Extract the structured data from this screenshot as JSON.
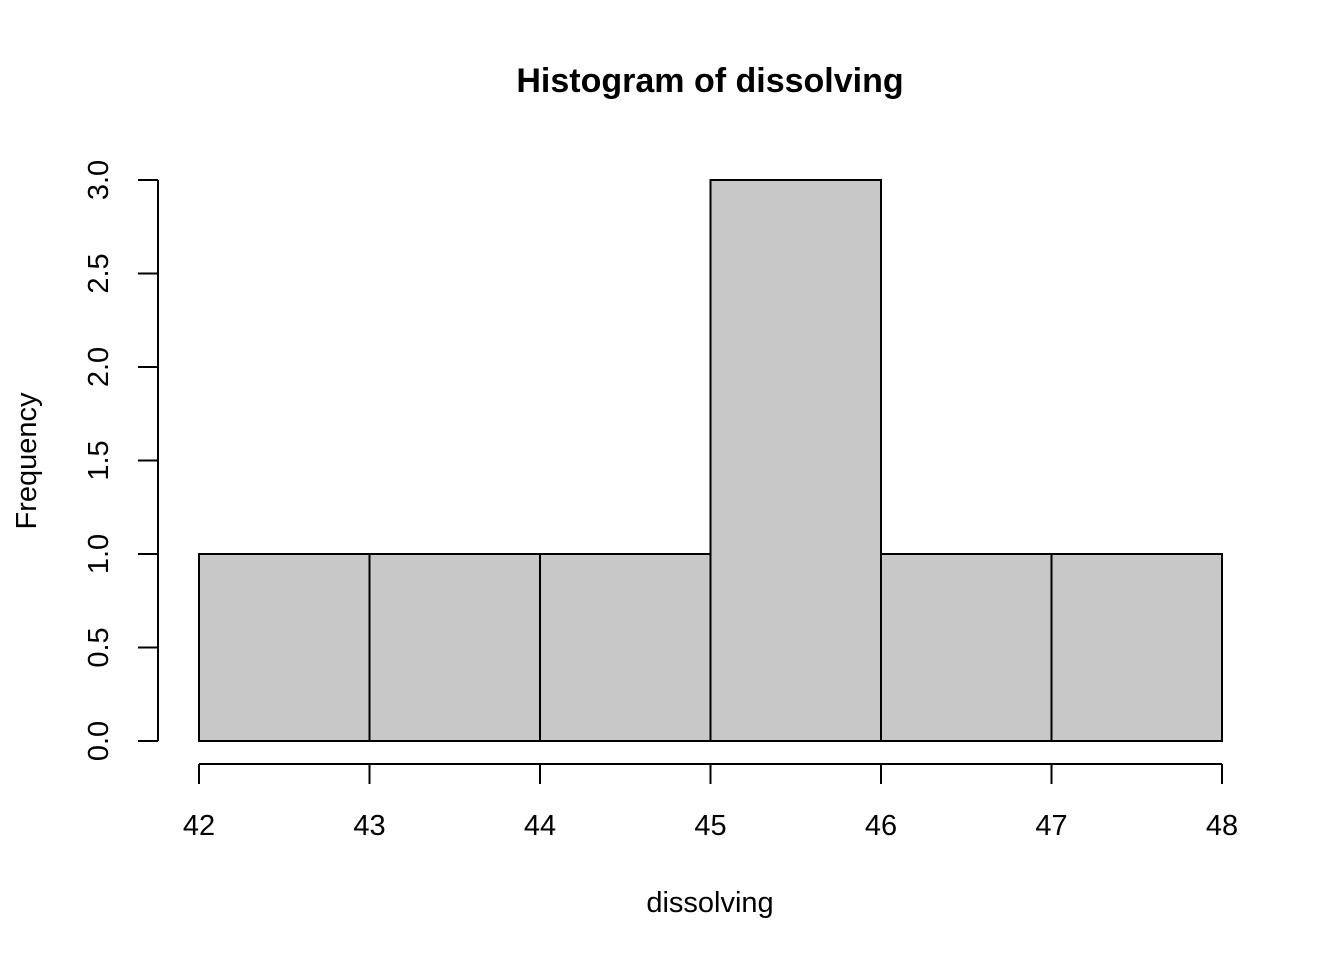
{
  "chart_data": {
    "type": "bar",
    "title": "Histogram of dissolving",
    "xlabel": "dissolving",
    "ylabel": "Frequency",
    "bins": [
      {
        "start": 42,
        "end": 43,
        "count": 1
      },
      {
        "start": 43,
        "end": 44,
        "count": 1
      },
      {
        "start": 44,
        "end": 45,
        "count": 1
      },
      {
        "start": 45,
        "end": 46,
        "count": 3
      },
      {
        "start": 46,
        "end": 47,
        "count": 1
      },
      {
        "start": 47,
        "end": 48,
        "count": 1
      }
    ],
    "xlim": [
      42,
      48
    ],
    "ylim": [
      0,
      3
    ],
    "x_ticks": [
      42,
      43,
      44,
      45,
      46,
      47,
      48
    ],
    "x_tick_labels": [
      "42",
      "43",
      "44",
      "45",
      "46",
      "47",
      "48"
    ],
    "y_ticks": [
      0,
      0.5,
      1,
      1.5,
      2,
      2.5,
      3
    ],
    "y_tick_labels": [
      "0.0",
      "0.5",
      "1.0",
      "1.5",
      "2.0",
      "2.5",
      "3.0"
    ],
    "grid": false,
    "bar_color": "#c8c8c8",
    "edge_color": "#000000"
  }
}
